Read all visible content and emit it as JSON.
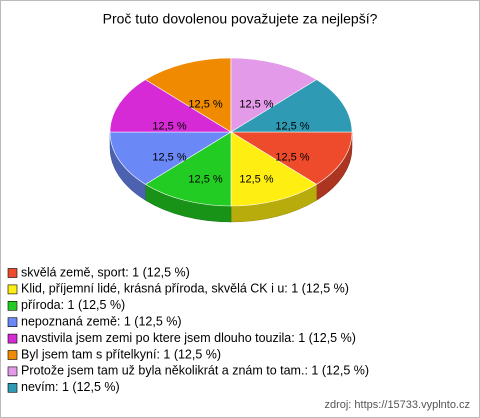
{
  "chart_data": {
    "type": "pie3d",
    "title": "Proč tuto dovolenou považujete za nejlepší?",
    "categories": [
      "skvělá země, sport: 1 (12,5 %)",
      "Klid, příjemní lidé, krásná příroda, skvělá CK i u: 1 (12,5 %)",
      "příroda: 1 (12,5 %)",
      "nepoznaná země: 1 (12,5 %)",
      "navstivila jsem zemi po ktere jsem dlouho touzila: 1 (12,5 %)",
      "Byl jsem tam s přítelkyní: 1 (12,5 %)",
      "Protože jsem tam už byla několikrát a znám to tam.: 1 (12,5 %)",
      "nevím: 1 (12,5 %)"
    ],
    "values": [
      12.5,
      12.5,
      12.5,
      12.5,
      12.5,
      12.5,
      12.5,
      12.5
    ],
    "value_labels": [
      "12,5 %",
      "12,5 %",
      "12,5 %",
      "12,5 %",
      "12,5 %",
      "12,5 %",
      "12,5 %",
      "12,5 %"
    ],
    "colors": [
      "#ee4a2c",
      "#ffee11",
      "#22cc22",
      "#6a88f6",
      "#d62ad6",
      "#f08a00",
      "#e39be9",
      "#2f9ab3"
    ],
    "source": "zdroj: https://15733.vyplnto.cz"
  }
}
